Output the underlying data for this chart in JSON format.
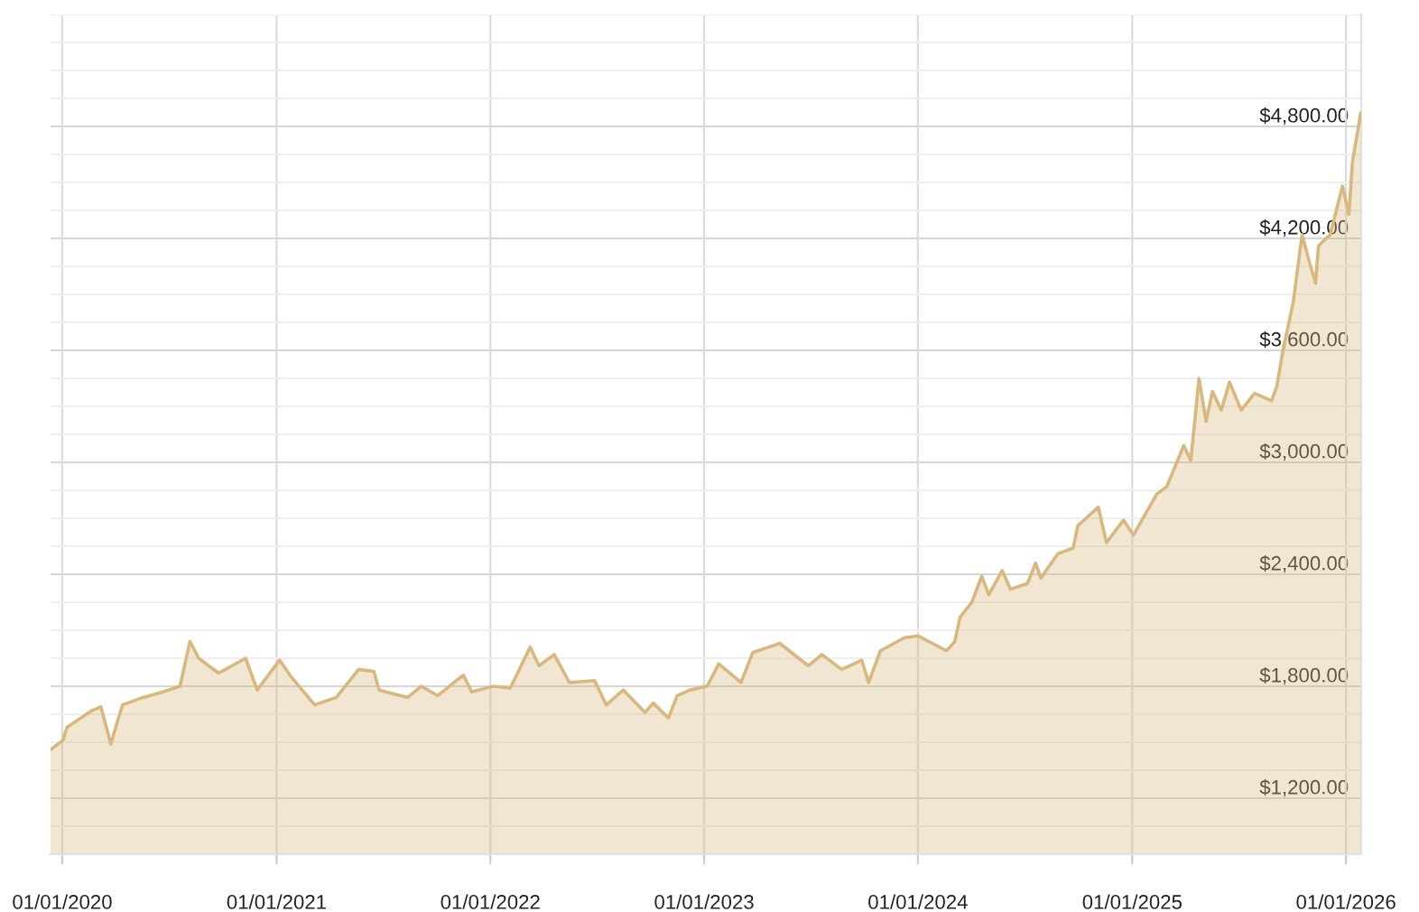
{
  "chart_data": {
    "type": "area",
    "x": [
      "2019-12-12",
      "2020-01-02",
      "2020-01-09",
      "2020-02-21",
      "2020-03-07",
      "2020-03-24",
      "2020-04-05",
      "2020-04-13",
      "2020-05-18",
      "2020-06-21",
      "2020-07-20",
      "2020-08-06",
      "2020-08-21",
      "2020-09-24",
      "2020-11-09",
      "2020-11-29",
      "2021-01-06",
      "2021-01-26",
      "2021-03-07",
      "2021-04-13",
      "2021-05-21",
      "2021-06-16",
      "2021-06-25",
      "2021-08-13",
      "2021-09-05",
      "2021-10-03",
      "2021-11-16",
      "2021-11-30",
      "2022-01-06",
      "2022-02-04",
      "2022-03-10",
      "2022-03-25",
      "2022-04-20",
      "2022-05-16",
      "2022-06-28",
      "2022-07-18",
      "2022-08-16",
      "2022-09-22",
      "2022-10-06",
      "2022-11-01",
      "2022-11-16",
      "2022-12-08",
      "2023-01-06",
      "2023-01-26",
      "2023-03-05",
      "2023-03-25",
      "2023-05-10",
      "2023-06-28",
      "2023-07-21",
      "2023-08-24",
      "2023-09-27",
      "2023-10-09",
      "2023-10-29",
      "2023-12-09",
      "2024-01-01",
      "2024-02-19",
      "2024-03-04",
      "2024-03-13",
      "2024-04-02",
      "2024-04-19",
      "2024-05-01",
      "2024-05-24",
      "2024-06-07",
      "2024-07-06",
      "2024-07-20",
      "2024-07-29",
      "2024-08-27",
      "2024-09-22",
      "2024-09-30",
      "2024-11-04",
      "2024-11-18",
      "2024-12-17",
      "2025-01-03",
      "2025-02-12",
      "2025-03-01",
      "2025-03-30",
      "2025-04-11",
      "2025-04-25",
      "2025-05-07",
      "2025-05-18",
      "2025-06-02",
      "2025-06-16",
      "2025-07-06",
      "2025-07-29",
      "2025-08-27",
      "2025-09-05",
      "2025-09-16",
      "2025-10-03",
      "2025-10-18",
      "2025-10-29",
      "2025-11-10",
      "2025-11-15",
      "2025-12-05",
      "2025-12-26",
      "2026-01-06",
      "2026-01-12",
      "2026-01-26"
    ],
    "series": [
      {
        "color": "#d8b87e",
        "values": [
          1460,
          1510,
          1580,
          1670,
          1690,
          1490,
          1620,
          1700,
          1740,
          1770,
          1800,
          2040,
          1950,
          1870,
          1950,
          1780,
          1940,
          1850,
          1700,
          1740,
          1890,
          1880,
          1780,
          1740,
          1800,
          1750,
          1860,
          1770,
          1800,
          1790,
          2010,
          1910,
          1970,
          1820,
          1830,
          1700,
          1780,
          1660,
          1710,
          1630,
          1750,
          1780,
          1800,
          1920,
          1820,
          1980,
          2030,
          1910,
          1970,
          1890,
          1940,
          1820,
          1990,
          2060,
          2070,
          1990,
          2040,
          2170,
          2250,
          2390,
          2290,
          2420,
          2320,
          2350,
          2460,
          2380,
          2510,
          2540,
          2660,
          2760,
          2570,
          2690,
          2610,
          2830,
          2870,
          3090,
          3010,
          3450,
          3220,
          3380,
          3280,
          3430,
          3280,
          3370,
          3330,
          3410,
          3610,
          3860,
          4220,
          4090,
          3960,
          4160,
          4220,
          4480,
          4330,
          4610,
          4870
        ]
      }
    ],
    "xlim": [
      "2019-12-12",
      "2026-01-27"
    ],
    "xticks": [
      {
        "value": "2020-01-01",
        "label": "01/01/2020"
      },
      {
        "value": "2021-01-01",
        "label": "01/01/2021"
      },
      {
        "value": "2022-01-01",
        "label": "01/01/2022"
      },
      {
        "value": "2023-01-01",
        "label": "01/01/2023"
      },
      {
        "value": "2024-01-01",
        "label": "01/01/2024"
      },
      {
        "value": "2025-01-01",
        "label": "01/01/2025"
      },
      {
        "value": "2026-01-01",
        "label": "01/01/2026"
      }
    ],
    "ylim": [
      900,
      5400
    ],
    "yticks": [
      {
        "value": 1050,
        "label": null
      },
      {
        "value": 1200,
        "label": "$1,200.00"
      },
      {
        "value": 1350,
        "label": null
      },
      {
        "value": 1500,
        "label": null
      },
      {
        "value": 1650,
        "label": null
      },
      {
        "value": 1800,
        "label": "$1,800.00"
      },
      {
        "value": 1950,
        "label": null
      },
      {
        "value": 2100,
        "label": null
      },
      {
        "value": 2250,
        "label": null
      },
      {
        "value": 2400,
        "label": "$2,400.00"
      },
      {
        "value": 2550,
        "label": null
      },
      {
        "value": 2700,
        "label": null
      },
      {
        "value": 2850,
        "label": null
      },
      {
        "value": 3000,
        "label": "$3,000.00"
      },
      {
        "value": 3150,
        "label": null
      },
      {
        "value": 3300,
        "label": null
      },
      {
        "value": 3450,
        "label": null
      },
      {
        "value": 3600,
        "label": "$3,600.00"
      },
      {
        "value": 3750,
        "label": null
      },
      {
        "value": 3900,
        "label": null
      },
      {
        "value": 4050,
        "label": null
      },
      {
        "value": 4200,
        "label": "$4,200.00"
      },
      {
        "value": 4350,
        "label": null
      },
      {
        "value": 4500,
        "label": null
      },
      {
        "value": 4650,
        "label": null
      },
      {
        "value": 4800,
        "label": "$4,800.00"
      },
      {
        "value": 4950,
        "label": null
      },
      {
        "value": 5100,
        "label": null
      },
      {
        "value": 5250,
        "label": null
      },
      {
        "value": 5400,
        "label": null
      }
    ],
    "grid": true
  }
}
